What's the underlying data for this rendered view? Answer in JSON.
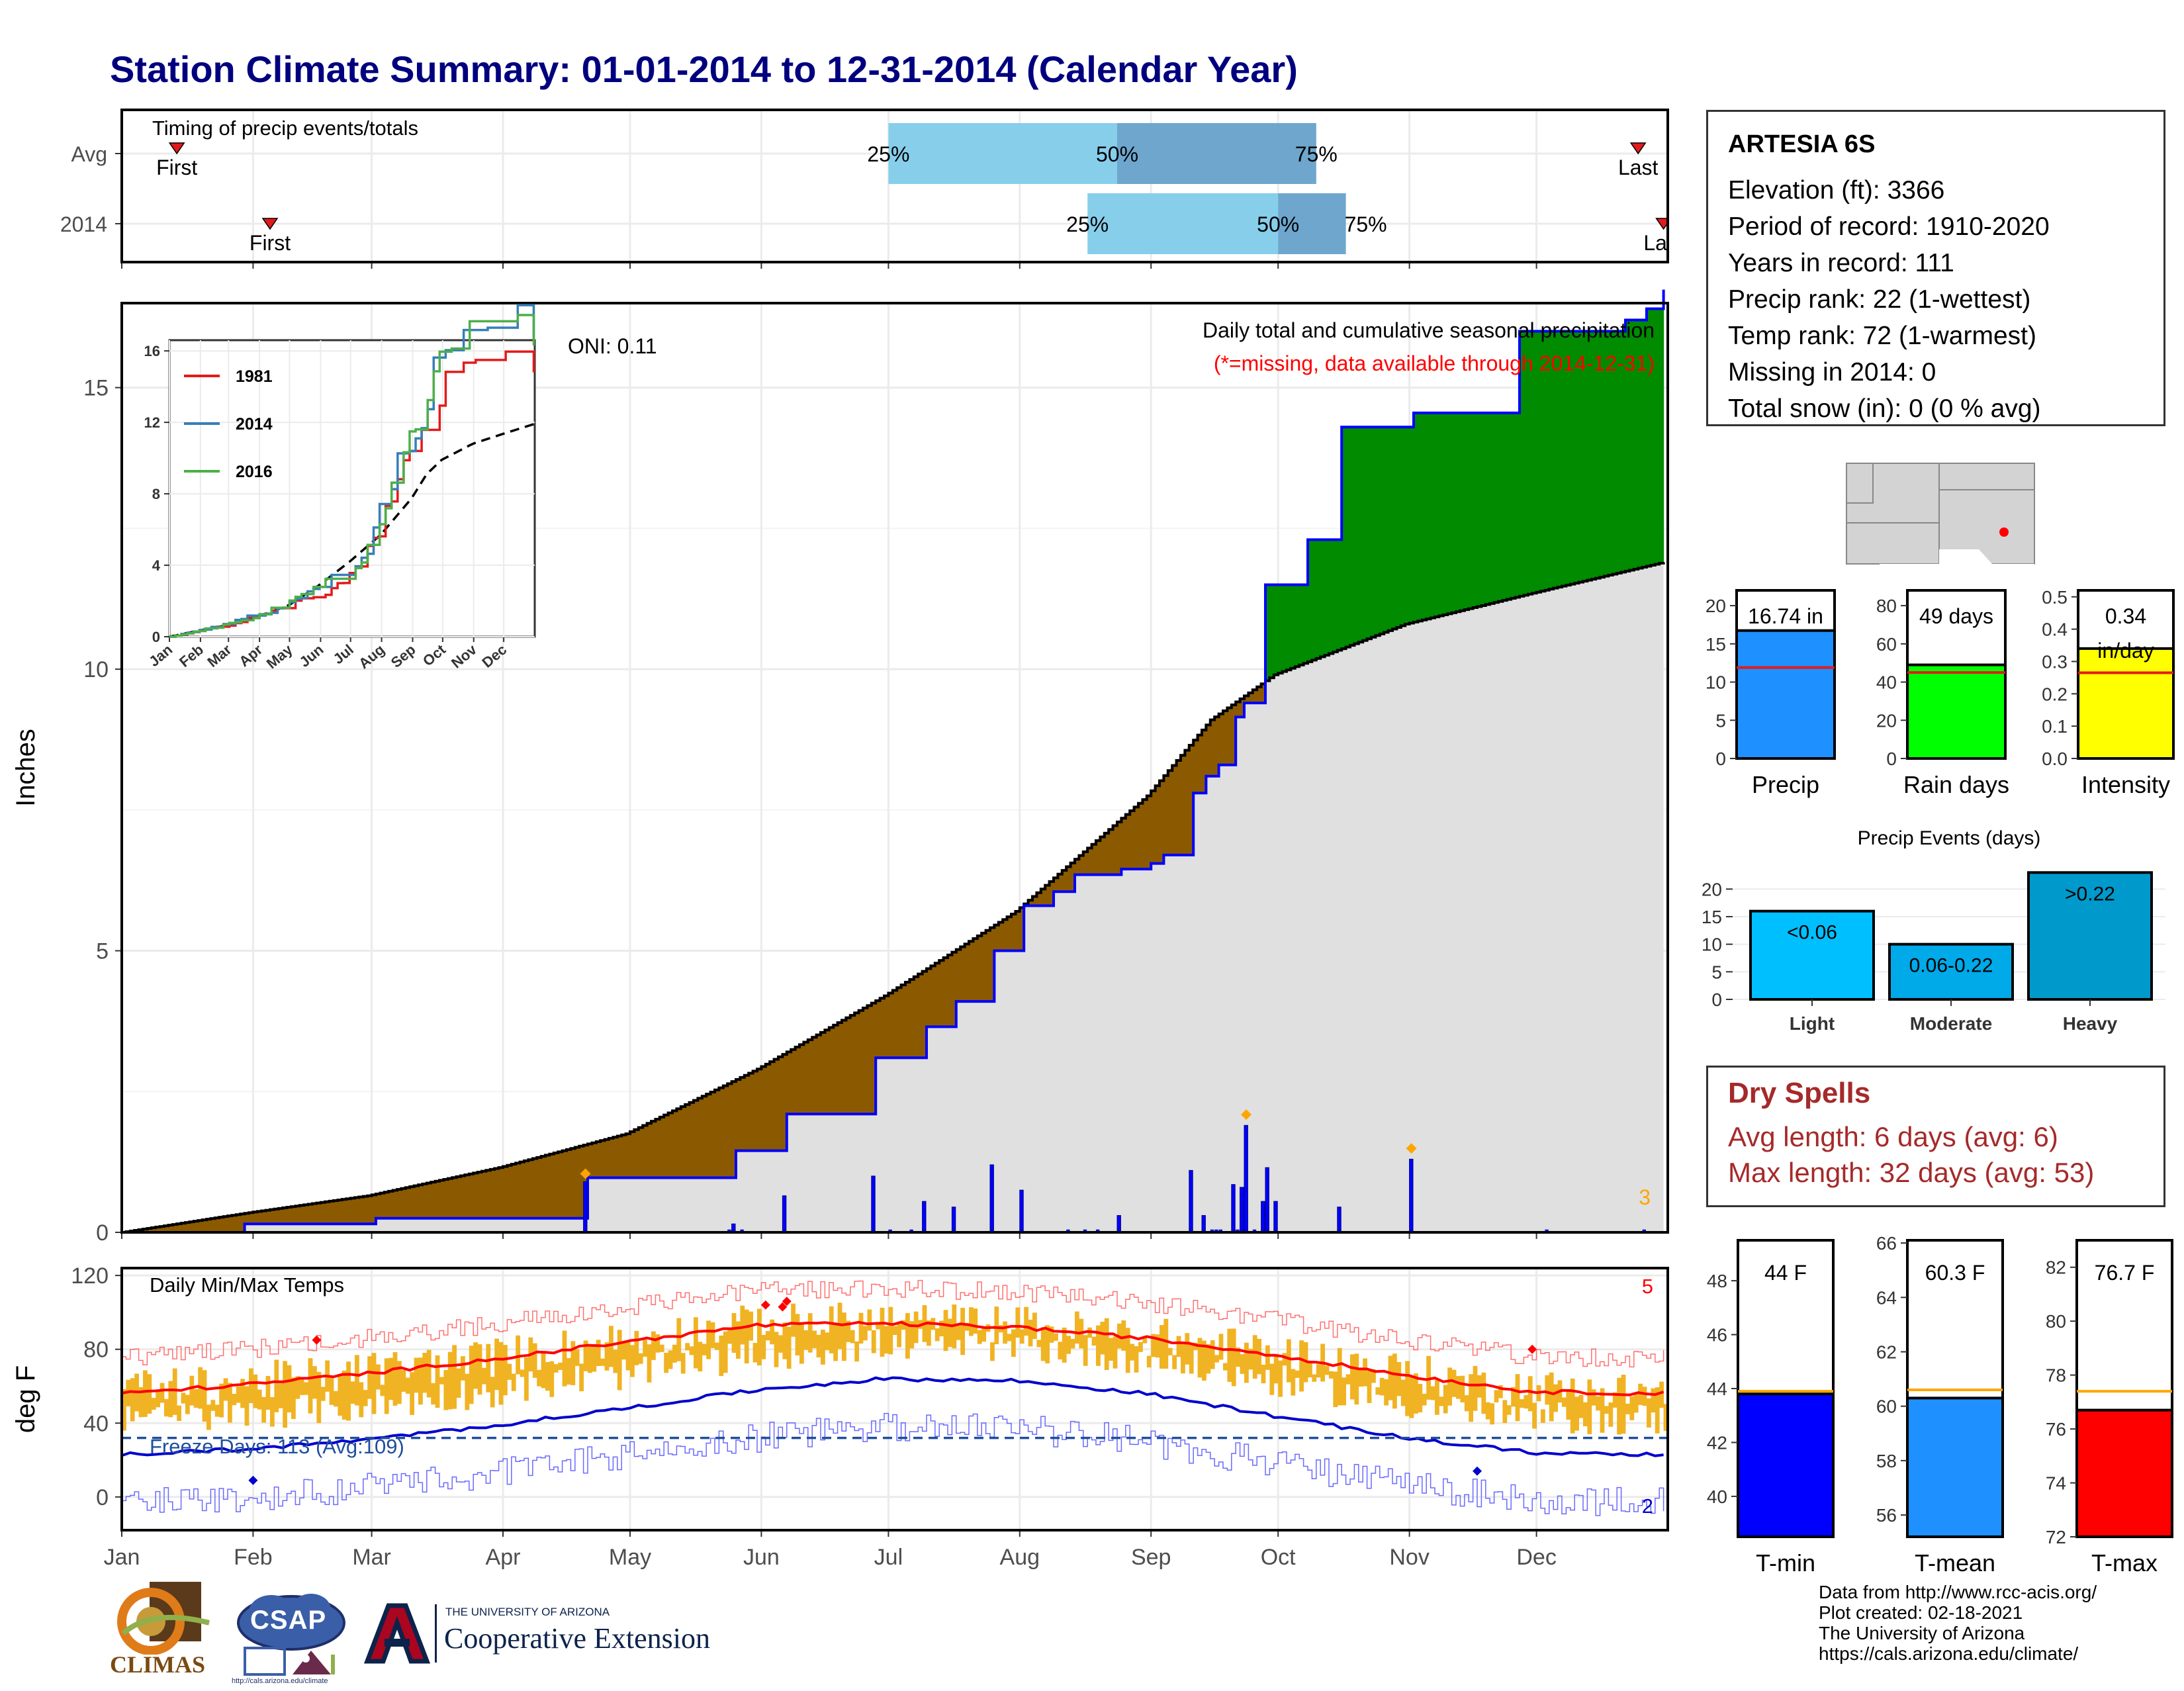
{
  "title": "Station Climate Summary: 01-01-2014 to 12-31-2014 (Calendar Year)",
  "timing": {
    "heading": "Timing of precip events/totals",
    "rows": [
      {
        "label": "Avg",
        "first_doy": 14,
        "last_doy": 359,
        "p25_doy": 182,
        "p50_doy": 236,
        "p75_doy": 283,
        "first_label": "First",
        "last_label": "Last"
      },
      {
        "label": "2014",
        "first_doy": 36,
        "last_doy": 365,
        "p25_doy": 229,
        "p50_doy": 274,
        "p75_doy": 290,
        "first_label": "First",
        "last_label": "Last"
      }
    ],
    "pct_labels": [
      "25%",
      "50%",
      "75%"
    ],
    "colors": {
      "light": "#87ceeb",
      "dark": "#6ea6cd",
      "marker": "#e31a1c"
    }
  },
  "precip_panel": {
    "title": "Daily total and cumulative seasonal precipitation",
    "subtitle": "(*=missing, data available through 2014-12-31)",
    "oni": "ONI: 0.11",
    "ylabel": "Inches",
    "yticks": [
      0,
      5,
      10,
      15
    ],
    "count_label": "3",
    "colors": {
      "above": "#008b00",
      "below": "#8b5a00",
      "avg_fill": "#e0e0e0",
      "obs_line": "#0000ff",
      "daily_bar": "#0000ff",
      "marker": "#ffa500"
    }
  },
  "inset": {
    "yticks": [
      0,
      4,
      8,
      12,
      16
    ],
    "months": [
      "Jan",
      "Feb",
      "Mar",
      "Apr",
      "May",
      "Jun",
      "Jul",
      "Aug",
      "Sep",
      "Oct",
      "Nov",
      "Dec"
    ],
    "series": [
      {
        "name": "1981",
        "color": "#e31a1c"
      },
      {
        "name": "2014",
        "color": "#377eb8"
      },
      {
        "name": "2016",
        "color": "#4daf4a"
      }
    ]
  },
  "temp_panel": {
    "title": "Daily Min/Max Temps",
    "ylabel": "deg F",
    "yticks": [
      0,
      40,
      80,
      120
    ],
    "freeze_text": "Freeze Days: 113 (Avg:109)",
    "freeze_line": 32,
    "count_top": "5",
    "count_bottom": "2",
    "months": [
      "Jan",
      "Feb",
      "Mar",
      "Apr",
      "May",
      "Jun",
      "Jul",
      "Aug",
      "Sep",
      "Oct",
      "Nov",
      "Dec"
    ],
    "colors": {
      "bar": "#f0b323",
      "max_avg": "#ff0000",
      "min_avg": "#0000cd",
      "freeze": "#1f4e9c"
    }
  },
  "station": {
    "name": "ARTESIA 6S",
    "lines": [
      "Elevation (ft): 3366",
      "Period of record: 1910-2020",
      "Years in record: 111",
      "Precip rank: 22 (1-wettest)",
      "Temp rank: 72 (1-warmest)",
      "Missing in 2014: 0",
      "Total snow (in): 0 (0 % avg)"
    ]
  },
  "gauges": [
    {
      "label": "Precip",
      "value_text": "16.74 in",
      "value": 16.74,
      "avg": 11.9,
      "ymin": 0,
      "ymax": 22,
      "ticks": [
        0,
        5,
        10,
        15,
        20
      ],
      "color": "#1e90ff"
    },
    {
      "label": "Rain days",
      "value_text": "49 days",
      "value": 49,
      "avg": 45,
      "ymin": 0,
      "ymax": 88,
      "ticks": [
        0,
        20,
        40,
        60,
        80
      ],
      "color": "#00ff00"
    },
    {
      "label": "Intensity",
      "value_text": "0.34",
      "value_text2": "in/day",
      "value": 0.34,
      "avg": 0.265,
      "ymin": 0,
      "ymax": 0.52,
      "ticks": [
        0.0,
        0.1,
        0.2,
        0.3,
        0.4,
        0.5
      ],
      "color": "#ffff00"
    }
  ],
  "precip_events": {
    "title": "Precip Events (days)",
    "ticks": [
      0,
      5,
      10,
      15,
      20
    ],
    "bars": [
      {
        "label": "Light",
        "value": 16,
        "text": "<0.06",
        "color": "#00bfff"
      },
      {
        "label": "Moderate",
        "value": 10,
        "text": "0.06-0.22",
        "color": "#00a9e8"
      },
      {
        "label": "Heavy",
        "value": 23,
        "text": ">0.22",
        "color": "#0099cc"
      }
    ]
  },
  "dry_spells": {
    "title": "Dry Spells",
    "avg": "Avg length: 6 days (avg: 6)",
    "max": "Max length: 32 days (avg: 53)"
  },
  "temp_gauges": [
    {
      "label": "T-min",
      "value_text": "44 F",
      "value": 43.8,
      "avg": 43.9,
      "ymin": 38.5,
      "ymax": 49.5,
      "ticks": [
        40,
        42,
        44,
        46,
        48
      ],
      "color": "#0000ff"
    },
    {
      "label": "T-mean",
      "value_text": "60.3 F",
      "value": 60.3,
      "avg": 60.6,
      "ymin": 55.2,
      "ymax": 66.1,
      "ticks": [
        56,
        58,
        60,
        62,
        64,
        66
      ],
      "color": "#1e90ff"
    },
    {
      "label": "T-max",
      "value_text": "76.7 F",
      "value": 76.7,
      "avg": 77.4,
      "ymin": 72,
      "ymax": 83,
      "ticks": [
        72,
        74,
        76,
        78,
        80,
        82
      ],
      "color": "#ff0000"
    }
  ],
  "logos": {
    "climas": "CLIMAS",
    "csap": "CSAP",
    "csap_url": "http://cals.arizona.edu/climate",
    "ua_small": "THE UNIVERSITY OF ARIZONA",
    "ua_big": "Cooperative Extension"
  },
  "credits": [
    "Data from http://www.rcc-acis.org/",
    "Plot created: 02-18-2021",
    "The University of Arizona",
    "https://cals.arizona.edu/climate/"
  ],
  "chart_data": [
    {
      "type": "bar",
      "title": "Timing of precip events/totals",
      "categories": [
        "Avg",
        "2014"
      ],
      "series": [
        {
          "name": "First",
          "values": [
            14,
            36
          ]
        },
        {
          "name": "25%",
          "values": [
            182,
            229
          ]
        },
        {
          "name": "50%",
          "values": [
            236,
            274
          ]
        },
        {
          "name": "75%",
          "values": [
            283,
            290
          ]
        },
        {
          "name": "Last",
          "values": [
            359,
            365
          ]
        }
      ]
    },
    {
      "type": "area",
      "title": "Daily total and cumulative seasonal precipitation",
      "ylabel": "Inches",
      "ylim": [
        0,
        16.5
      ],
      "x_unit": "day of year",
      "series": [
        {
          "name": "cumulative 2014",
          "x": [
            1,
            30,
            60,
            61,
            110,
            111,
            145,
            146,
            157,
            158,
            178,
            179,
            190,
            191,
            197,
            198,
            206,
            207,
            213,
            214,
            220,
            221,
            225,
            226,
            236,
            237,
            243,
            244,
            246,
            247,
            253,
            254,
            256,
            257,
            259,
            260,
            263,
            264,
            265,
            266,
            270,
            271,
            280,
            281,
            288,
            289,
            305,
            306,
            330,
            331,
            355,
            356,
            360,
            361,
            365
          ],
          "values": [
            0,
            0.15,
            0.15,
            0.25,
            0.25,
            0.97,
            0.97,
            1.45,
            1.45,
            2.1,
            2.1,
            3.1,
            3.1,
            3.65,
            3.65,
            4.1,
            4.1,
            5.0,
            5.0,
            5.8,
            5.8,
            6.05,
            6.05,
            6.35,
            6.35,
            6.45,
            6.45,
            6.55,
            6.55,
            6.7,
            6.7,
            7.8,
            7.8,
            8.1,
            8.1,
            8.3,
            8.3,
            9.15,
            9.15,
            9.4,
            9.4,
            11.5,
            11.5,
            12.3,
            12.3,
            14.3,
            14.3,
            14.55,
            14.55,
            16.0,
            16.0,
            16.2,
            16.2,
            16.4,
            16.74
          ]
        },
        {
          "name": "average",
          "x": [
            1,
            31,
            59,
            90,
            120,
            151,
            181,
            212,
            243,
            258,
            273,
            304,
            334,
            365
          ],
          "values": [
            0,
            0.35,
            0.65,
            1.15,
            1.75,
            2.9,
            4.2,
            5.7,
            7.75,
            9.1,
            9.9,
            10.8,
            11.35,
            11.9
          ]
        }
      ],
      "daily_precip": [
        {
          "doy": 110,
          "value": 0.9
        },
        {
          "doy": 145,
          "value": 0.15
        },
        {
          "doy": 157,
          "value": 0.65
        },
        {
          "doy": 178,
          "value": 1.0
        },
        {
          "doy": 190,
          "value": 0.55
        },
        {
          "doy": 197,
          "value": 0.45
        },
        {
          "doy": 206,
          "value": 1.2
        },
        {
          "doy": 213,
          "value": 0.75
        },
        {
          "doy": 236,
          "value": 0.3
        },
        {
          "doy": 253,
          "value": 1.1
        },
        {
          "doy": 256,
          "value": 0.3
        },
        {
          "doy": 263,
          "value": 0.85
        },
        {
          "doy": 265,
          "value": 0.8
        },
        {
          "doy": 266,
          "value": 1.9
        },
        {
          "doy": 270,
          "value": 0.55
        },
        {
          "doy": 271,
          "value": 1.15
        },
        {
          "doy": 273,
          "value": 0.55
        },
        {
          "doy": 288,
          "value": 0.45
        },
        {
          "doy": 305,
          "value": 1.3
        }
      ]
    },
    {
      "type": "line",
      "title": "Daily Min/Max Temps",
      "ylabel": "deg F",
      "ylim": [
        -18,
        124
      ],
      "x_unit": "day of year",
      "series": [
        {
          "name": "avg max",
          "x": [
            1,
            31,
            59,
            90,
            120,
            151,
            181,
            212,
            243,
            273,
            304,
            334,
            365
          ],
          "values": [
            56,
            61,
            67,
            75,
            84,
            93,
            94,
            92,
            86,
            77,
            66,
            57,
            56
          ]
        },
        {
          "name": "avg min",
          "x": [
            1,
            31,
            59,
            90,
            120,
            151,
            181,
            212,
            243,
            273,
            304,
            334,
            365
          ],
          "values": [
            23,
            26,
            31,
            39,
            48,
            58,
            64,
            63,
            56,
            44,
            32,
            24,
            23
          ]
        }
      ]
    },
    {
      "type": "bar",
      "title": "Precip",
      "categories": [
        "Precip"
      ],
      "values": [
        16.74
      ],
      "ylim": [
        0,
        22
      ]
    },
    {
      "type": "bar",
      "title": "Rain days",
      "categories": [
        "Rain days"
      ],
      "values": [
        49
      ],
      "ylim": [
        0,
        88
      ]
    },
    {
      "type": "bar",
      "title": "Intensity",
      "categories": [
        "Intensity"
      ],
      "values": [
        0.34
      ],
      "ylim": [
        0,
        0.52
      ]
    },
    {
      "type": "bar",
      "title": "Precip Events (days)",
      "categories": [
        "Light",
        "Moderate",
        "Heavy"
      ],
      "values": [
        16,
        10,
        23
      ],
      "ylim": [
        0,
        24
      ]
    },
    {
      "type": "bar",
      "title": "T-min",
      "categories": [
        "T-min"
      ],
      "values": [
        43.8
      ],
      "ylim": [
        38.5,
        49.5
      ]
    },
    {
      "type": "bar",
      "title": "T-mean",
      "categories": [
        "T-mean"
      ],
      "values": [
        60.3
      ],
      "ylim": [
        55.2,
        66.1
      ]
    },
    {
      "type": "bar",
      "title": "T-max",
      "categories": [
        "T-max"
      ],
      "values": [
        76.7
      ],
      "ylim": [
        72,
        83
      ]
    }
  ]
}
